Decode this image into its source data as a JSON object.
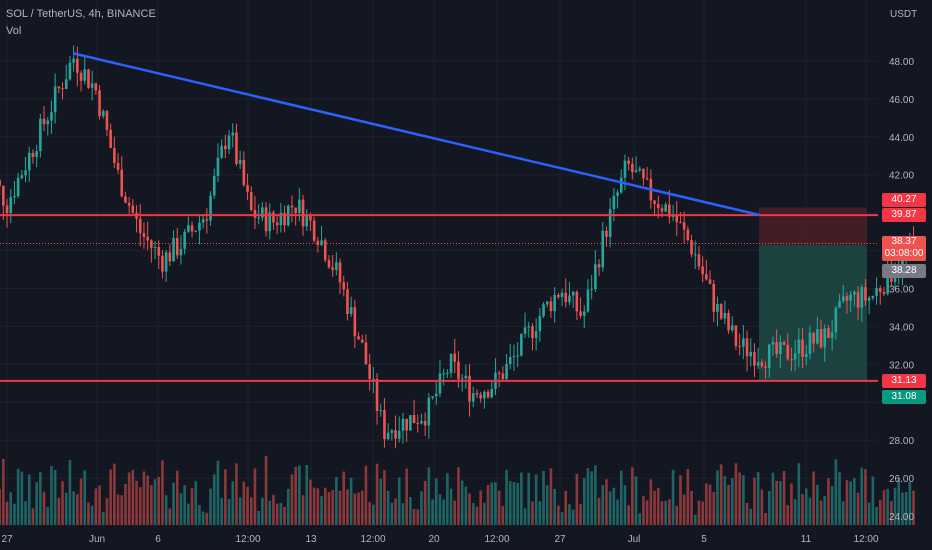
{
  "header": {
    "title": "SOL / TetherUS, 4h, BINANCE",
    "indicator": "Vol"
  },
  "axis": {
    "currency": "USDT",
    "y_ticks": [
      "48.00",
      "46.00",
      "44.00",
      "42.00",
      "40.00",
      "38.00",
      "36.00",
      "34.00",
      "32.00",
      "30.00",
      "28.00",
      "26.00",
      "24.00"
    ],
    "x_ticks": [
      "27",
      "Jun",
      "6",
      "12:00",
      "13",
      "12:00",
      "20",
      "12:00",
      "27",
      "Jul",
      "5",
      "11",
      "12:00"
    ]
  },
  "price_labels": {
    "short_stop": "40.27",
    "resistance": "39.87",
    "last_price": "38.37",
    "countdown": "03:08:00",
    "entry": "38.28",
    "support": "31.13",
    "target": "31.08"
  },
  "colors": {
    "background": "#131722",
    "up": "#26a69a",
    "down": "#ef5350",
    "trendline": "#2962ff",
    "level_line": "#f23645",
    "target_zone": "#1e4a45",
    "stop_zone": "#4a1e26"
  },
  "chart_data": {
    "type": "candlestick",
    "symbol": "SOL / TetherUS",
    "timeframe": "4h",
    "exchange": "BINANCE",
    "ylim": [
      23.5,
      50.5
    ],
    "current_price": 38.37,
    "horizontal_levels": [
      39.87,
      31.13
    ],
    "trendline": {
      "from": {
        "date": "May 30",
        "price": 48.4
      },
      "to": {
        "date": "Jul 7",
        "price": 39.87
      }
    },
    "short_position": {
      "entry": 38.28,
      "stop": 40.27,
      "target": 31.08
    },
    "price_path": [
      {
        "date": "May 26",
        "price": 42.5
      },
      {
        "date": "May 27",
        "price": 40.5
      },
      {
        "date": "May 28",
        "price": 43.0
      },
      {
        "date": "May 30",
        "price": 48.2
      },
      {
        "date": "May 31",
        "price": 46.5
      },
      {
        "date": "Jun 1",
        "price": 42.0
      },
      {
        "date": "Jun 2",
        "price": 39.0
      },
      {
        "date": "Jun 3",
        "price": 37.5
      },
      {
        "date": "Jun 4",
        "price": 38.5
      },
      {
        "date": "Jun 5",
        "price": 40.0
      },
      {
        "date": "Jun 6",
        "price": 44.5
      },
      {
        "date": "Jun 7",
        "price": 40.0
      },
      {
        "date": "Jun 8",
        "price": 39.5
      },
      {
        "date": "Jun 9",
        "price": 40.5
      },
      {
        "date": "Jun 10",
        "price": 39.0
      },
      {
        "date": "Jun 11",
        "price": 36.5
      },
      {
        "date": "Jun 12",
        "price": 33.0
      },
      {
        "date": "Jun 13",
        "price": 28.5
      },
      {
        "date": "Jun 14",
        "price": 29.0
      },
      {
        "date": "Jun 15",
        "price": 29.5
      },
      {
        "date": "Jun 16",
        "price": 32.0
      },
      {
        "date": "Jun 17",
        "price": 30.5
      },
      {
        "date": "Jun 18",
        "price": 31.0
      },
      {
        "date": "Jun 19",
        "price": 32.5
      },
      {
        "date": "Jun 20",
        "price": 34.5
      },
      {
        "date": "Jun 21",
        "price": 36.0
      },
      {
        "date": "Jun 22",
        "price": 34.5
      },
      {
        "date": "Jun 23",
        "price": 39.0
      },
      {
        "date": "Jun 24",
        "price": 42.5
      },
      {
        "date": "Jun 25",
        "price": 41.0
      },
      {
        "date": "Jun 26",
        "price": 40.0
      },
      {
        "date": "Jun 27",
        "price": 38.0
      },
      {
        "date": "Jun 28",
        "price": 35.0
      },
      {
        "date": "Jun 29",
        "price": 33.0
      },
      {
        "date": "Jun 30",
        "price": 32.5
      },
      {
        "date": "Jul 1",
        "price": 32.5
      },
      {
        "date": "Jul 2",
        "price": 33.0
      },
      {
        "date": "Jul 3",
        "price": 33.5
      },
      {
        "date": "Jul 4",
        "price": 35.5
      },
      {
        "date": "Jul 5",
        "price": 35.5
      },
      {
        "date": "Jul 6",
        "price": 37.0
      },
      {
        "date": "Jul 7",
        "price": 38.37
      }
    ],
    "volume": "bars"
  }
}
